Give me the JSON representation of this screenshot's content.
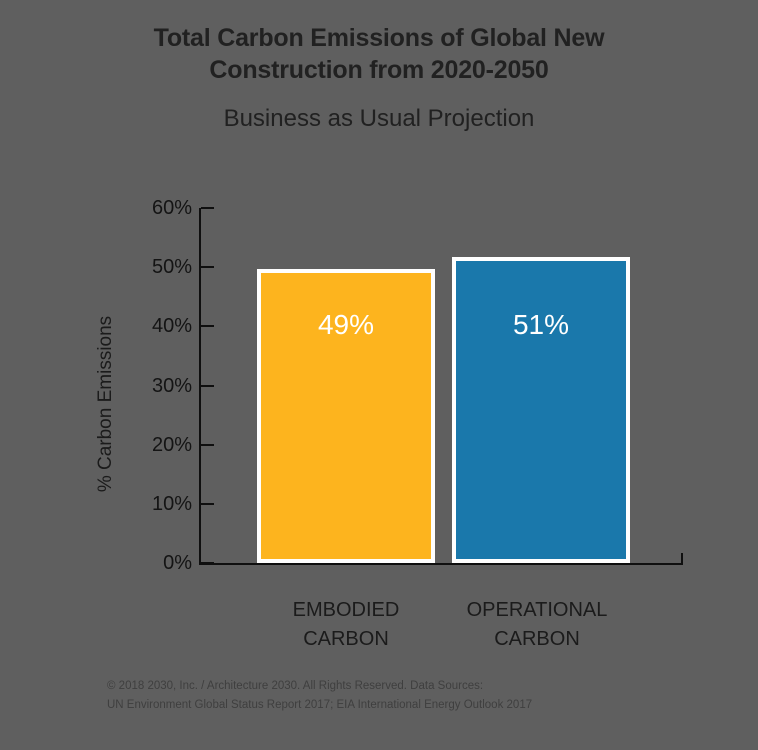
{
  "chart_data": {
    "type": "bar",
    "title": "Total Carbon Emissions of Global New Construction from 2020-2050",
    "title_lines": [
      "Total Carbon Emissions of Global New",
      "Construction from 2020-2050"
    ],
    "subtitle": "Business as Usual Projection",
    "categories": [
      "EMBODIED CARBON",
      "OPERATIONAL CARBON"
    ],
    "values": [
      49,
      51
    ],
    "value_labels": [
      "49%",
      "51%"
    ],
    "bar_colors": [
      "#fdb41e",
      "#1a78ab"
    ],
    "xlabel": "",
    "ylabel": "% Carbon Emissions",
    "ylim": [
      0,
      60
    ],
    "ytick_values": [
      0,
      10,
      20,
      30,
      40,
      50,
      60
    ],
    "ytick_labels": [
      "0%",
      "10%",
      "20%",
      "30%",
      "40%",
      "50%",
      "60%"
    ],
    "grid": false,
    "legend": "none"
  },
  "footer": {
    "line1": "© 2018 2030, Inc. / Architecture 2030. All Rights Reserved. Data Sources:",
    "line2": "UN Environment Global Status Report 2017; EIA International Energy Outlook 2017"
  },
  "colors": {
    "background": "#5f5f5f",
    "embodied_bar": "#fdb41e",
    "operational_bar": "#1a78ab",
    "bar_border": "#ffffff",
    "axis": "#0f0f0f",
    "heading_text": "#212121",
    "value_label_text": "#ffffff",
    "footer_text": "#3f3f3f"
  }
}
